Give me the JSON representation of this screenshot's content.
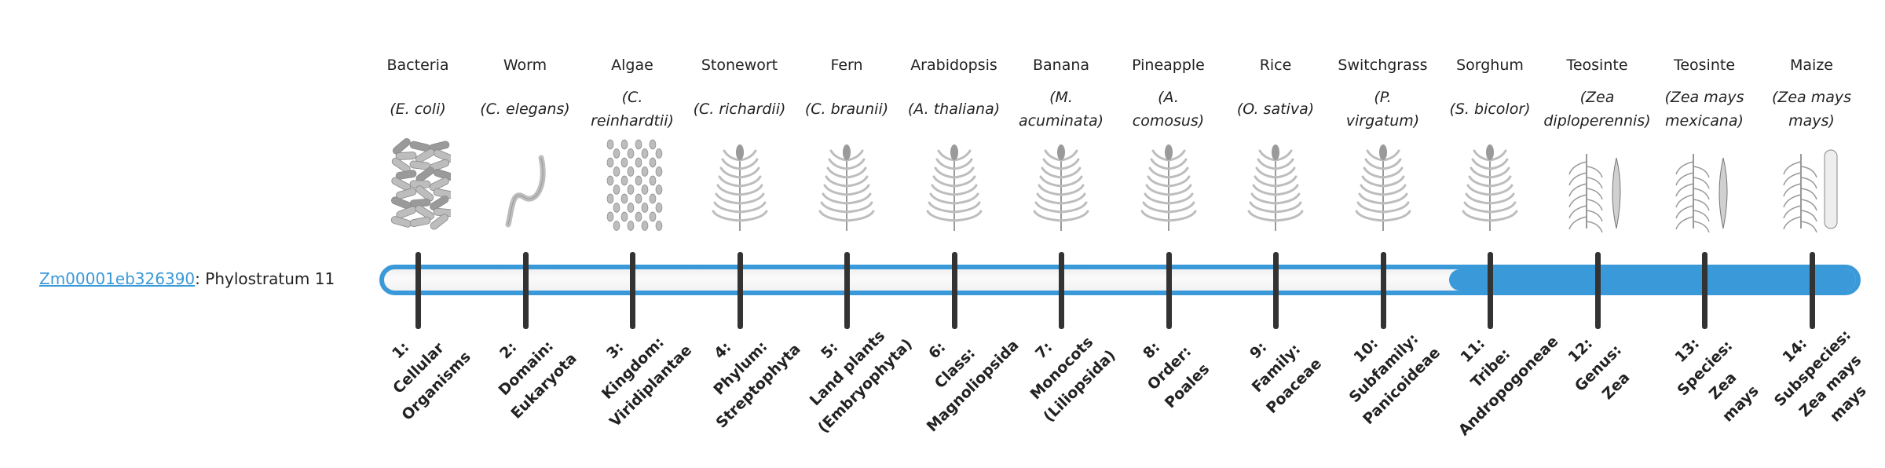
{
  "gene": {
    "id_link": "Zm00001eb326390",
    "suffix": ": Phylostratum 11"
  },
  "colors": {
    "accent": "#3a99d8",
    "tick": "#333333",
    "bar_empty": "#f5f5f5"
  },
  "phylostratum": {
    "value": 11,
    "max": 14
  },
  "organisms": [
    {
      "common": "Bacteria",
      "latin": [
        "(E. coli)"
      ],
      "icon": "bacteria-illustration"
    },
    {
      "common": "Worm",
      "latin": [
        "(C. elegans)"
      ],
      "icon": "worm-illustration"
    },
    {
      "common": "Algae",
      "latin": [
        "(C.",
        "reinhardtii)"
      ],
      "icon": "algae-illustration"
    },
    {
      "common": "Stonewort",
      "latin": [
        "(C. richardii)"
      ],
      "icon": "stonewort-illustration"
    },
    {
      "common": "Fern",
      "latin": [
        "(C. braunii)"
      ],
      "icon": "fern-illustration"
    },
    {
      "common": "Arabidopsis",
      "latin": [
        "(A. thaliana)"
      ],
      "icon": "arabidopsis-illustration"
    },
    {
      "common": "Banana",
      "latin": [
        "(M.",
        "acuminata)"
      ],
      "icon": "banana-illustration"
    },
    {
      "common": "Pineapple",
      "latin": [
        "(A.",
        "comosus)"
      ],
      "icon": "pineapple-illustration"
    },
    {
      "common": "Rice",
      "latin": [
        "(O. sativa)"
      ],
      "icon": "rice-illustration"
    },
    {
      "common": "Switchgrass",
      "latin": [
        "(P.",
        "virgatum)"
      ],
      "icon": "switchgrass-illustration"
    },
    {
      "common": "Sorghum",
      "latin": [
        "(S. bicolor)"
      ],
      "icon": "sorghum-illustration"
    },
    {
      "common": "Teosinte",
      "latin": [
        "(Zea",
        "diploperennis)"
      ],
      "icon": "teosinte-illustration"
    },
    {
      "common": "Teosinte",
      "latin": [
        "(Zea mays",
        "mexicana)"
      ],
      "icon": "teosinte-illustration"
    },
    {
      "common": "Maize",
      "latin": [
        "(Zea mays",
        "mays)"
      ],
      "icon": "maize-illustration"
    }
  ],
  "strata": [
    [
      "1:",
      "Cellular",
      "Organisms"
    ],
    [
      "2:",
      "Domain:",
      "Eukaryota"
    ],
    [
      "3:",
      "Kingdom:",
      "Viridiplantae"
    ],
    [
      "4:",
      "Phylum:",
      "Streptophyta"
    ],
    [
      "5:",
      "Land plants",
      "(Embryophyta)"
    ],
    [
      "6:",
      "Class:",
      "Magnoliopsida"
    ],
    [
      "7:",
      "Monocots",
      "(Liliopsida)"
    ],
    [
      "8:",
      "Order:",
      "Poales"
    ],
    [
      "9:",
      "Family:",
      "Poaceae"
    ],
    [
      "10:",
      "Subfamily:",
      "Panicoideae"
    ],
    [
      "11:",
      "Tribe:",
      "Andropogoneae"
    ],
    [
      "12:",
      "Genus:",
      "Zea"
    ],
    [
      "13:",
      "Species:",
      "Zea",
      "mays"
    ],
    [
      "14:",
      "Subspecies:",
      "Zea mays",
      "mays"
    ]
  ]
}
